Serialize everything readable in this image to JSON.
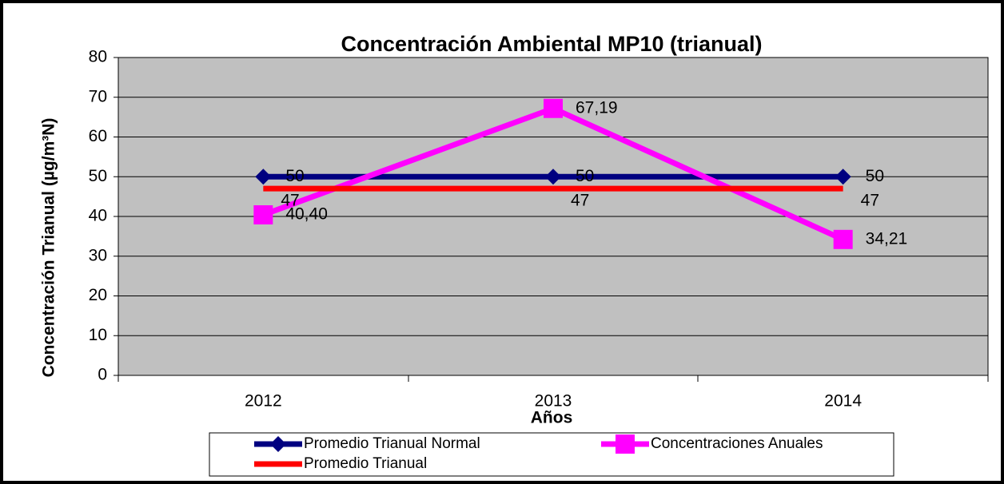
{
  "chart_data": {
    "type": "line",
    "title": "Concentración Ambiental MP10 (trianual)",
    "ylabel": "Concentración Trianual (µg/m³N)",
    "xlabel": "Años",
    "categories": [
      "2012",
      "2013",
      "2014"
    ],
    "series": [
      {
        "name": "Promedio Trianual Normal",
        "color": "#000080",
        "marker": "diamond",
        "values": [
          50,
          50,
          50
        ]
      },
      {
        "name": "Concentraciones Anuales",
        "color": "#ff00ff",
        "marker": "square",
        "values": [
          40.4,
          67.19,
          34.21
        ],
        "value_labels": [
          "40,40",
          "67,19",
          "34,21"
        ]
      },
      {
        "name": "Promedio Trianual",
        "color": "#ff0000",
        "marker": "none",
        "values": [
          47,
          47,
          47
        ]
      }
    ],
    "ylim": [
      0,
      80
    ],
    "yticks": [
      0,
      10,
      20,
      30,
      40,
      50,
      60,
      70,
      80
    ],
    "grid": true
  }
}
